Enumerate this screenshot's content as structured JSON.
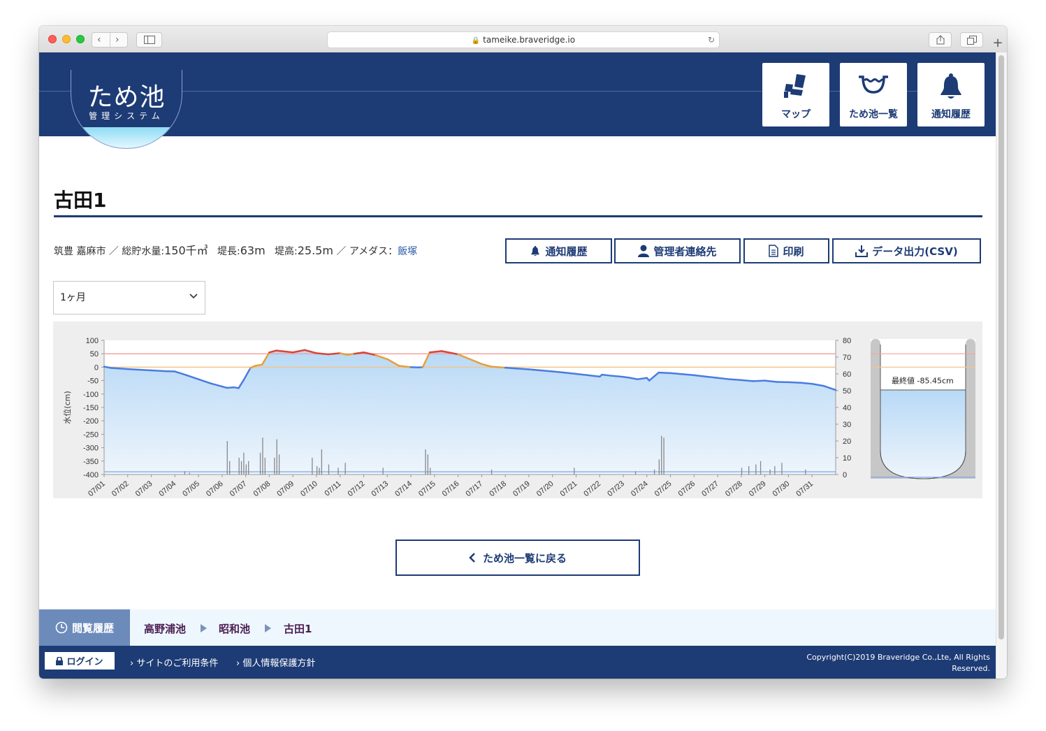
{
  "browser": {
    "url": "tameike.braveridge.io"
  },
  "header": {
    "logo_title": "ため池",
    "logo_subtitle": "管理システム",
    "nav": [
      {
        "label": "マップ",
        "icon": "map-seat-icon"
      },
      {
        "label": "ため池一覧",
        "icon": "pond-icon"
      },
      {
        "label": "通知履歴",
        "icon": "bell-icon"
      }
    ]
  },
  "page": {
    "title": "古田1",
    "info": {
      "location": "筑豊 嘉麻市",
      "sep": "／",
      "capacity_label": "総貯水量:",
      "capacity_value": "150千㎥",
      "length_label": "堤長:",
      "length_value": "63m",
      "height_label": "堤高:",
      "height_value": "25.5m",
      "amedas_label": "アメダス：",
      "amedas_link": "飯塚"
    },
    "actions": [
      {
        "label": "通知履歴",
        "icon": "bell-icon"
      },
      {
        "label": "管理者連絡先",
        "icon": "person-icon"
      },
      {
        "label": "印刷",
        "icon": "document-icon"
      },
      {
        "label": "データ出力(CSV)",
        "icon": "download-icon"
      }
    ],
    "period_select": {
      "value": "1ヶ月"
    },
    "back_button": "ため池一覧に戻る"
  },
  "history": {
    "label": "閲覧履歴",
    "items": [
      "高野浦池",
      "昭和池",
      "古田1"
    ]
  },
  "footer": {
    "login": "ログイン",
    "links": [
      "サイトのご利用条件",
      "個人情報保護方針"
    ],
    "copyright_line1": "Copyright(C)2019 Braveridge Co.,Lte, All Rights",
    "copyright_line2": "Reserved."
  },
  "colors": {
    "brand_navy": "#1d3b75",
    "water_line": "#4a7ce0",
    "warning_line": "#e3a040",
    "danger_line": "#d8443c",
    "threshold_red": "#f2a39d",
    "threshold_orange": "#f0c58e",
    "fill_blue": "#bcdcf7"
  },
  "chart_data": {
    "type": "line",
    "ylabel": "水位(cm)",
    "y2label": "降水量(mm/h)",
    "ylim": [
      -400,
      100
    ],
    "y_ticks": [
      100,
      50,
      0,
      -50,
      -100,
      -150,
      -200,
      -250,
      -300,
      -350,
      -400
    ],
    "y2lim": [
      0,
      80
    ],
    "y2_ticks": [
      80,
      70,
      60,
      50,
      40,
      30,
      20,
      10,
      0
    ],
    "categories": [
      "07/01",
      "07/02",
      "07/03",
      "07/04",
      "07/05",
      "07/06",
      "07/07",
      "07/08",
      "07/09",
      "07/10",
      "07/11",
      "07/12",
      "07/13",
      "07/14",
      "07/15",
      "07/16",
      "07/17",
      "07/18",
      "07/19",
      "07/20",
      "07/21",
      "07/22",
      "07/23",
      "07/24",
      "07/25",
      "07/26",
      "07/27",
      "07/28",
      "07/29",
      "07/30",
      "07/31"
    ],
    "thresholds": [
      {
        "value": 50,
        "color": "#f2a39d"
      },
      {
        "value": 0,
        "color": "#f0c58e"
      },
      {
        "value": -390,
        "color": "#8fb0ea"
      }
    ],
    "series": [
      {
        "type": "line",
        "x": [
          0,
          0.3,
          1,
          2,
          2.6,
          3,
          3.5,
          4,
          4.5,
          5,
          5.2,
          5.5,
          5.7,
          5.9,
          6.2,
          6.4,
          6.7,
          7,
          7.3,
          8,
          8.5,
          9,
          9.5,
          10,
          10.3,
          10.6,
          11,
          11.5,
          12,
          12.5,
          13,
          13.3,
          13.5,
          13.8,
          14.3,
          15,
          15.5,
          16,
          16.4,
          17,
          17.5,
          18,
          18.5,
          19,
          19.5,
          20,
          20.5,
          21,
          21.1,
          21.5,
          22,
          22.3,
          22.6,
          23,
          23.1,
          23.5,
          24,
          24.5,
          25,
          25.5,
          26,
          26.5,
          27,
          27.5,
          28,
          28.5,
          29,
          29.5,
          30,
          30.5,
          31
        ],
        "values": [
          2,
          -3,
          -7,
          -12,
          -15,
          -16,
          -30,
          -45,
          -60,
          -72,
          -77,
          -75,
          -78,
          -50,
          -3,
          5,
          10,
          55,
          62,
          55,
          64,
          52,
          48,
          52,
          46,
          50,
          55,
          45,
          30,
          5,
          0,
          -1,
          0,
          55,
          60,
          48,
          30,
          12,
          2,
          -2,
          -5,
          -8,
          -12,
          -16,
          -20,
          -25,
          -30,
          -35,
          -28,
          -32,
          -36,
          -40,
          -45,
          -40,
          -50,
          -20,
          -22,
          -26,
          -30,
          -35,
          -40,
          -45,
          -48,
          -52,
          -50,
          -55,
          -56,
          -58,
          -62,
          -70,
          -85
        ]
      },
      {
        "type": "bar",
        "name": "rain",
        "x": [
          3.4,
          3.6,
          5.2,
          5.3,
          5.7,
          5.8,
          5.9,
          6.0,
          6.1,
          6.6,
          6.7,
          6.8,
          7.2,
          7.3,
          7.4,
          8.8,
          9.0,
          9.1,
          9.2,
          9.5,
          9.9,
          10.2,
          11.8,
          13.6,
          13.7,
          13.8,
          16.4,
          19.9,
          22.5,
          23.3,
          23.5,
          23.6,
          23.7,
          27.0,
          27.3,
          27.6,
          27.8,
          28.2,
          28.4,
          28.7,
          29.7
        ]
      }
    ],
    "rain_values": [
      2,
      1,
      20,
      8,
      10,
      8,
      13,
      6,
      8,
      13,
      22,
      10,
      10,
      21,
      12,
      10,
      5,
      4,
      15,
      6,
      4,
      7,
      4,
      15,
      12,
      4,
      3,
      4,
      2,
      3,
      9,
      23,
      22,
      4,
      5,
      6,
      8,
      3,
      5,
      7,
      3
    ],
    "gauge": {
      "label": "最終値",
      "value": "-85.45cm"
    }
  }
}
